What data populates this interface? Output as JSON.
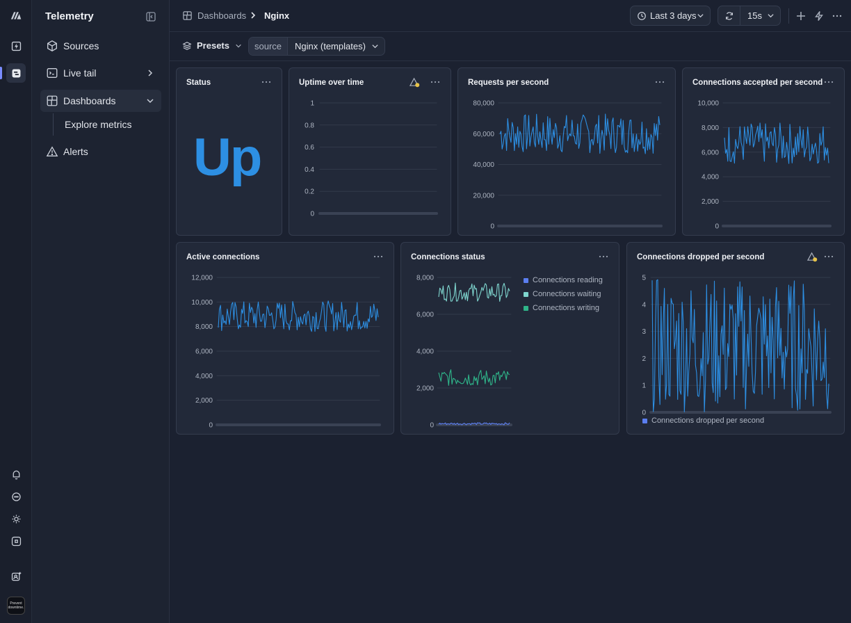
{
  "sidebar": {
    "title": "Telemetry",
    "items": [
      {
        "label": "Sources",
        "icon": "cube-icon"
      },
      {
        "label": "Live tail",
        "icon": "terminal-icon"
      },
      {
        "label": "Dashboards",
        "icon": "layout-icon"
      },
      {
        "label": "Explore metrics"
      },
      {
        "label": "Alerts",
        "icon": "warning-icon"
      }
    ]
  },
  "avatar": {
    "line1": "Prevent",
    "line2": "downtime."
  },
  "breadcrumb": {
    "parent": "Dashboards",
    "current": "Nginx"
  },
  "header": {
    "time_range": "Last 3 days",
    "refresh_interval": "15s"
  },
  "toolbar": {
    "presets_label": "Presets",
    "source_key": "source",
    "source_value": "Nginx (templates)"
  },
  "colors": {
    "primary_series": "#2d8fe3",
    "reading": "#5b7ef0",
    "waiting": "#7fd6cf",
    "writing": "#2fb489",
    "warning": "#e7c34a"
  },
  "panels": {
    "status": {
      "title": "Status",
      "value": "Up"
    },
    "uptime": {
      "title": "Uptime over time"
    },
    "rps": {
      "title": "Requests per second"
    },
    "cap": {
      "title": "Connections accepted per second"
    },
    "active": {
      "title": "Active connections"
    },
    "cstatus": {
      "title": "Connections status"
    },
    "dropped": {
      "title": "Connections dropped per second"
    }
  },
  "chart_data": [
    {
      "id": "uptime",
      "type": "line",
      "title": "Uptime over time",
      "ylim": [
        0,
        1
      ],
      "yticks": [
        "1",
        "0.8",
        "0.6",
        "0.4",
        "0.2",
        "0"
      ],
      "series": [
        {
          "values": []
        }
      ]
    },
    {
      "id": "rps",
      "type": "line",
      "title": "Requests per second",
      "ylim": [
        0,
        80000
      ],
      "yticks": [
        "80,000",
        "60,000",
        "40,000",
        "20,000",
        "0"
      ],
      "series": [
        {
          "range": [
            47000,
            73000
          ],
          "mean": 59000
        }
      ]
    },
    {
      "id": "cap",
      "type": "line",
      "title": "Connections accepted per second",
      "ylim": [
        0,
        10000
      ],
      "yticks": [
        "10,000",
        "8,000",
        "6,000",
        "4,000",
        "2,000",
        "0"
      ],
      "series": [
        {
          "range": [
            5000,
            8400
          ],
          "mean": 6800
        }
      ]
    },
    {
      "id": "active",
      "type": "line",
      "title": "Active connections",
      "ylim": [
        0,
        12000
      ],
      "yticks": [
        "12,000",
        "10,000",
        "8,000",
        "6,000",
        "4,000",
        "2,000",
        "0"
      ],
      "series": [
        {
          "range": [
            7600,
            10100
          ],
          "mean": 8900
        }
      ]
    },
    {
      "id": "cstatus",
      "type": "line",
      "title": "Connections status",
      "ylim": [
        0,
        8000
      ],
      "yticks": [
        "8,000",
        "6,000",
        "4,000",
        "2,000",
        "0"
      ],
      "legend": [
        "Connections reading",
        "Connections waiting",
        "Connections writing"
      ],
      "series": [
        {
          "name": "Connections reading",
          "range": [
            0,
            120
          ],
          "mean": 60
        },
        {
          "name": "Connections waiting",
          "range": [
            6700,
            7700
          ],
          "mean": 7200
        },
        {
          "name": "Connections writing",
          "range": [
            2100,
            3000
          ],
          "mean": 2600
        }
      ]
    },
    {
      "id": "dropped",
      "type": "line",
      "title": "Connections dropped per second",
      "ylim": [
        0,
        5
      ],
      "yticks": [
        "5",
        "4",
        "3",
        "2",
        "1",
        "0"
      ],
      "legend": [
        "Connections dropped per second"
      ],
      "series": [
        {
          "name": "Connections dropped per second",
          "range": [
            0,
            5
          ],
          "mean": 2.5
        }
      ]
    }
  ]
}
